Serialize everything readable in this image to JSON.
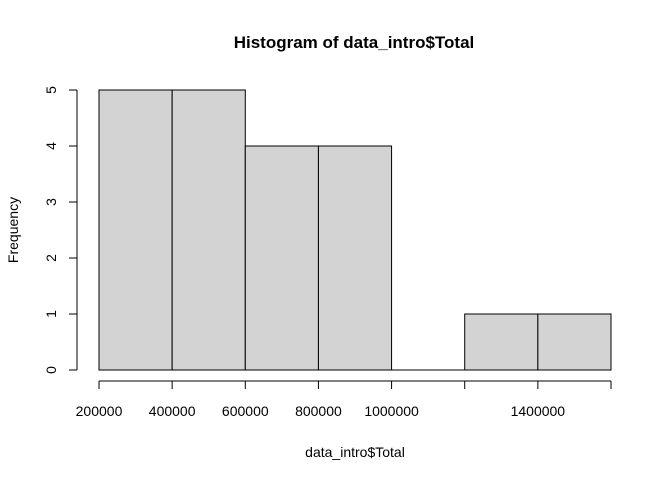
{
  "chart_data": {
    "type": "bar",
    "title": "Histogram of data_intro$Total",
    "xlabel": "data_intro$Total",
    "ylabel": "Frequency",
    "bins": [
      {
        "x0": 200000,
        "x1": 400000,
        "count": 5
      },
      {
        "x0": 400000,
        "x1": 600000,
        "count": 5
      },
      {
        "x0": 600000,
        "x1": 800000,
        "count": 4
      },
      {
        "x0": 800000,
        "x1": 1000000,
        "count": 4
      },
      {
        "x0": 1000000,
        "x1": 1200000,
        "count": 0
      },
      {
        "x0": 1200000,
        "x1": 1400000,
        "count": 1
      },
      {
        "x0": 1400000,
        "x1": 1600000,
        "count": 1
      }
    ],
    "xlim": [
      200000,
      1600000
    ],
    "ylim": [
      0,
      5
    ],
    "x_ticks": [
      200000,
      400000,
      600000,
      800000,
      1000000,
      1200000,
      1400000,
      1600000
    ],
    "x_tick_labels": [
      "200000",
      "400000",
      "600000",
      "800000",
      "1000000",
      "",
      "1400000",
      ""
    ],
    "y_ticks": [
      0,
      1,
      2,
      3,
      4,
      5
    ],
    "y_tick_labels": [
      "0",
      "1",
      "2",
      "3",
      "4",
      "5"
    ],
    "bar_color": "#d3d3d3",
    "edge_color": "#000000",
    "grid": false
  }
}
